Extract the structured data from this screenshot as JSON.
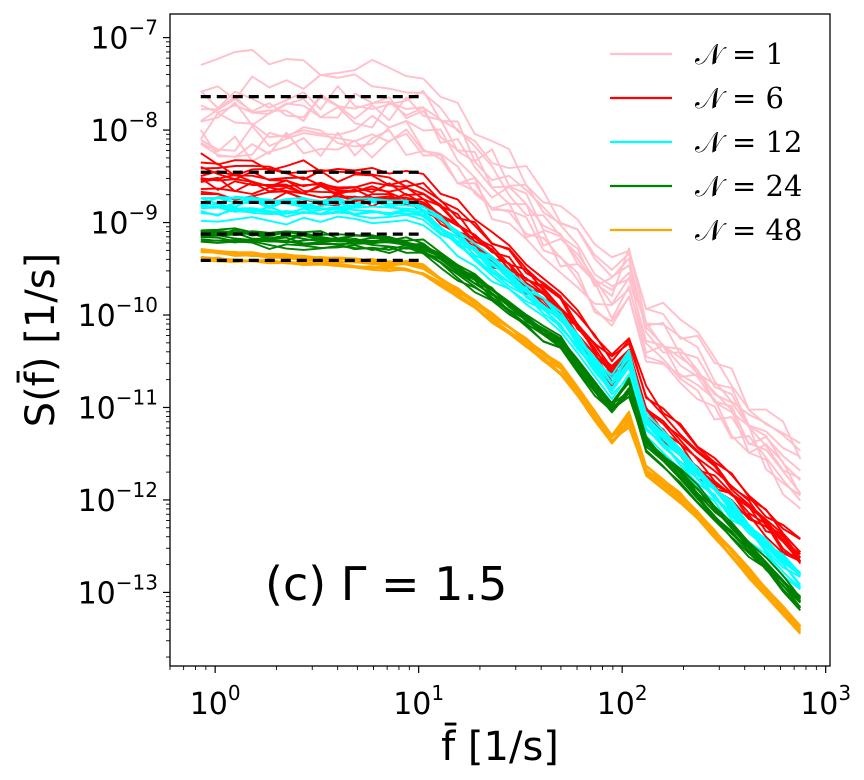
{
  "chart_data": {
    "type": "line",
    "title": "",
    "xscale": "log",
    "yscale": "log",
    "xlim": [
      0.6,
      1050
    ],
    "ylim": [
      1.6e-14,
      1.8e-07
    ],
    "xlabel": "f̄ [1/s]",
    "ylabel": "S(f̄) [1/s]",
    "x_ticks": [
      {
        "value": 1,
        "base": "10",
        "exp": "0"
      },
      {
        "value": 10,
        "base": "10",
        "exp": "1"
      },
      {
        "value": 100,
        "base": "10",
        "exp": "2"
      },
      {
        "value": 1000,
        "base": "10",
        "exp": "3"
      }
    ],
    "y_ticks": [
      {
        "value": 1e-07,
        "base": "10",
        "exp": "−7"
      },
      {
        "value": 1e-08,
        "base": "10",
        "exp": "−8"
      },
      {
        "value": 1e-09,
        "base": "10",
        "exp": "−9"
      },
      {
        "value": 1e-10,
        "base": "10",
        "exp": "−10"
      },
      {
        "value": 1e-11,
        "base": "10",
        "exp": "−11"
      },
      {
        "value": 1e-12,
        "base": "10",
        "exp": "−12"
      },
      {
        "value": 1e-13,
        "base": "10",
        "exp": "−13"
      }
    ],
    "annotation": "(c)   Γ = 1.5",
    "legend_position": "top-right",
    "series": [
      {
        "name": "𝒩 = 1",
        "color": "#ffc0cb",
        "n_curves": 12,
        "spread": 0.55,
        "jitter": 0.16,
        "x": [
          0.85,
          10,
          20,
          50,
          100,
          200,
          750
        ],
        "y": [
          2e-08,
          2e-08,
          5e-09,
          8e-10,
          1.5e-10,
          4e-11,
          2e-12
        ]
      },
      {
        "name": "𝒩 = 6",
        "color": "#ff0000",
        "n_curves": 12,
        "spread": 0.2,
        "jitter": 0.07,
        "x": [
          0.85,
          10,
          20,
          50,
          100,
          200,
          750
        ],
        "y": [
          3.2e-09,
          2.2e-09,
          7e-10,
          1.3e-10,
          2e-11,
          4e-12,
          2.8e-13
        ]
      },
      {
        "name": "𝒩 = 12",
        "color": "#00ffff",
        "n_curves": 12,
        "spread": 0.12,
        "jitter": 0.05,
        "x": [
          0.85,
          10,
          20,
          50,
          100,
          200,
          750
        ],
        "y": [
          1.4e-09,
          1.3e-09,
          4e-10,
          8e-11,
          1.2e-11,
          2.5e-12,
          1.3e-13
        ]
      },
      {
        "name": "𝒩 = 24",
        "color": "#008000",
        "n_curves": 12,
        "spread": 0.1,
        "jitter": 0.04,
        "x": [
          0.85,
          10,
          20,
          50,
          100,
          200,
          750
        ],
        "y": [
          7e-10,
          5.5e-10,
          2e-10,
          4.5e-11,
          7e-12,
          1.6e-12,
          7.5e-14
        ]
      },
      {
        "name": "𝒩 = 48",
        "color": "#ffa500",
        "n_curves": 12,
        "spread": 0.05,
        "jitter": 0.02,
        "x": [
          0.85,
          10,
          20,
          50,
          100,
          200,
          750
        ],
        "y": [
          4.5e-10,
          3.3e-10,
          1.2e-10,
          2.6e-11,
          3.2e-12,
          1e-12,
          4e-14
        ]
      }
    ],
    "reference_lines": [
      {
        "y": 2.3e-08,
        "x_range": [
          0.85,
          10
        ]
      },
      {
        "y": 3.5e-09,
        "x_range": [
          0.85,
          10
        ]
      },
      {
        "y": 1.65e-09,
        "x_range": [
          0.85,
          10
        ]
      },
      {
        "y": 7.5e-10,
        "x_range": [
          0.85,
          10
        ]
      },
      {
        "y": 3.9e-10,
        "x_range": [
          0.85,
          10
        ]
      }
    ]
  }
}
